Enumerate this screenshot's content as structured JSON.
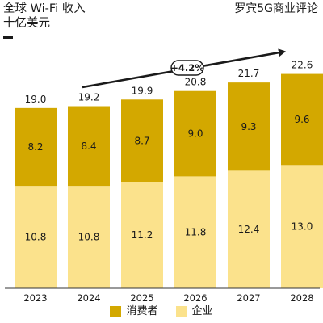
{
  "header": {
    "title_line1": "全球 Wi-Fi 收入",
    "title_line2": "十亿美元",
    "brand": "罗宾5G商业评论"
  },
  "colors": {
    "consumer": "#d3a800",
    "enterprise": "#fbe28c",
    "text": "#1a1a1a",
    "axis": "#333333"
  },
  "chart_data": {
    "type": "bar",
    "stacked": true,
    "categories": [
      "2023",
      "2024",
      "2025",
      "2026",
      "2027",
      "2028"
    ],
    "series": [
      {
        "name": "企业",
        "values": [
          10.8,
          10.8,
          11.2,
          11.8,
          12.4,
          13.0
        ]
      },
      {
        "name": "消费者",
        "values": [
          8.2,
          8.4,
          8.7,
          9.0,
          9.3,
          9.6
        ]
      }
    ],
    "totals": [
      19.0,
      19.2,
      19.9,
      20.8,
      21.7,
      22.6
    ],
    "title": "全球 Wi-Fi 收入",
    "ylabel": "十亿美元",
    "ylim": [
      0,
      23.5
    ],
    "annotation": "+4.2%",
    "legend_position": "bottom"
  },
  "legend": [
    {
      "label": "消费者",
      "key": "consumer"
    },
    {
      "label": "企业",
      "key": "enterprise"
    }
  ]
}
